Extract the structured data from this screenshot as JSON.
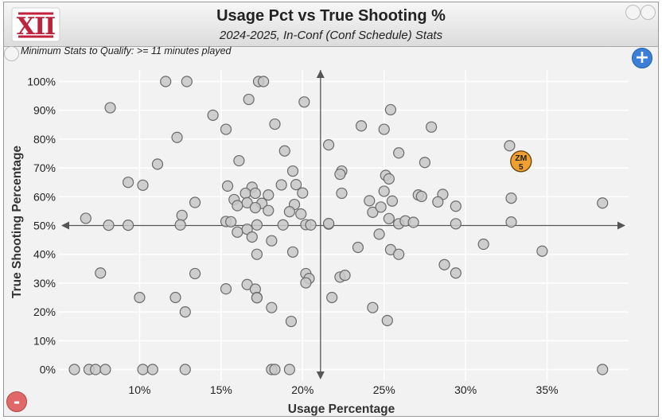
{
  "header": {
    "logo_text": "XII",
    "title": "Usage Pct vs True Shooting %",
    "subtitle": "2024-2025, In-Conf (Conf Schedule) Stats"
  },
  "qualify_text": "Minimum Stats to Qualify: >= 11 minutes played",
  "controls": {
    "zoom_in": "+",
    "zoom_out": "-"
  },
  "colors": {
    "point_fill": "#c8c8c8",
    "point_stroke": "#6a6a6a",
    "highlight_fill": "#f0a030",
    "highlight_stroke": "#6a4a10",
    "axis": "#555555",
    "logo": "#c0223b"
  },
  "chart_data": {
    "type": "scatter",
    "xlabel": "Usage Percentage",
    "ylabel": "True Shooting Percentage",
    "xlim": [
      5,
      40
    ],
    "ylim": [
      -4,
      104
    ],
    "x_ticks": [
      10,
      15,
      20,
      25,
      30,
      35
    ],
    "x_tick_labels": [
      "10%",
      "15%",
      "20%",
      "25%",
      "30%",
      "35%"
    ],
    "y_ticks": [
      0,
      10,
      20,
      30,
      40,
      50,
      60,
      70,
      80,
      90,
      100
    ],
    "y_tick_labels": [
      "0%",
      "10%",
      "20%",
      "30%",
      "40%",
      "50%",
      "60%",
      "70%",
      "80%",
      "90%",
      "100%"
    ],
    "grid": true,
    "crosshair": {
      "x": 21.1,
      "y": 50
    },
    "highlight": {
      "label": "ZM",
      "number": "5",
      "x": 33.4,
      "y": 72.3
    },
    "points": [
      [
        11.6,
        100
      ],
      [
        12.9,
        100
      ],
      [
        17.3,
        100
      ],
      [
        17.6,
        100
      ],
      [
        8.2,
        90.9
      ],
      [
        16.7,
        93.8
      ],
      [
        20.1,
        92.9
      ],
      [
        25.4,
        90.2
      ],
      [
        14.5,
        88.3
      ],
      [
        15.3,
        83.4
      ],
      [
        18.3,
        85.2
      ],
      [
        23.6,
        84.6
      ],
      [
        25.0,
        83.4
      ],
      [
        27.9,
        84.2
      ],
      [
        12.3,
        80.6
      ],
      [
        21.6,
        78.0
      ],
      [
        18.9,
        75.9
      ],
      [
        25.9,
        75.2
      ],
      [
        32.7,
        77.7
      ],
      [
        11.1,
        71.3
      ],
      [
        16.1,
        72.5
      ],
      [
        22.4,
        68.9
      ],
      [
        19.4,
        68.9
      ],
      [
        22.3,
        67.8
      ],
      [
        25.1,
        67.4
      ],
      [
        25.3,
        66.2
      ],
      [
        27.5,
        71.9
      ],
      [
        9.3,
        65.0
      ],
      [
        10.2,
        64.0
      ],
      [
        15.4,
        63.7
      ],
      [
        16.9,
        63.3
      ],
      [
        18.7,
        64.1
      ],
      [
        19.6,
        64.2
      ],
      [
        16.5,
        61.2
      ],
      [
        17.1,
        61.2
      ],
      [
        17.9,
        60.6
      ],
      [
        20.0,
        61.3
      ],
      [
        22.4,
        61.2
      ],
      [
        25.0,
        61.9
      ],
      [
        27.1,
        60.6
      ],
      [
        27.3,
        60.1
      ],
      [
        28.6,
        60.8
      ],
      [
        32.8,
        59.5
      ],
      [
        13.4,
        58.0
      ],
      [
        15.8,
        59.0
      ],
      [
        16.6,
        57.9
      ],
      [
        17.5,
        57.7
      ],
      [
        19.5,
        57.3
      ],
      [
        24.1,
        58.6
      ],
      [
        25.5,
        58.5
      ],
      [
        28.3,
        58.2
      ],
      [
        29.4,
        56.7
      ],
      [
        16.0,
        56.9
      ],
      [
        17.1,
        56.2
      ],
      [
        17.9,
        55.2
      ],
      [
        19.2,
        54.8
      ],
      [
        24.3,
        54.6
      ],
      [
        24.8,
        56.4
      ],
      [
        12.6,
        53.5
      ],
      [
        19.9,
        54.0
      ],
      [
        25.3,
        52.4
      ],
      [
        25.9,
        50.6
      ],
      [
        26.3,
        51.6
      ],
      [
        26.8,
        51.1
      ],
      [
        29.4,
        50.6
      ],
      [
        32.8,
        51.2
      ],
      [
        38.4,
        57.8
      ],
      [
        6.7,
        52.5
      ],
      [
        8.1,
        50.1
      ],
      [
        9.3,
        50.1
      ],
      [
        12.5,
        50.2
      ],
      [
        15.3,
        51.4
      ],
      [
        15.6,
        51.3
      ],
      [
        16.6,
        48.7
      ],
      [
        17.2,
        50.2
      ],
      [
        18.8,
        50.2
      ],
      [
        20.2,
        50.3
      ],
      [
        20.5,
        50.2
      ],
      [
        21.6,
        50.5
      ],
      [
        21.6,
        50.7
      ],
      [
        16.0,
        47.7
      ],
      [
        16.9,
        46.0
      ],
      [
        18.1,
        44.7
      ],
      [
        17.2,
        40.0
      ],
      [
        19.4,
        40.8
      ],
      [
        23.4,
        42.4
      ],
      [
        24.7,
        47.0
      ],
      [
        25.4,
        41.6
      ],
      [
        25.9,
        40.0
      ],
      [
        31.1,
        43.5
      ],
      [
        34.7,
        41.1
      ],
      [
        7.6,
        33.5
      ],
      [
        13.4,
        33.3
      ],
      [
        20.2,
        33.3
      ],
      [
        20.4,
        31.6
      ],
      [
        20.2,
        30.1
      ],
      [
        22.3,
        32.1
      ],
      [
        22.6,
        32.7
      ],
      [
        28.7,
        36.4
      ],
      [
        29.4,
        33.5
      ],
      [
        15.3,
        28.0
      ],
      [
        16.6,
        29.5
      ],
      [
        17.1,
        27.9
      ],
      [
        17.2,
        25.0
      ],
      [
        17.2,
        24.9
      ],
      [
        10.0,
        25.0
      ],
      [
        12.2,
        25.0
      ],
      [
        21.8,
        25.0
      ],
      [
        12.8,
        20.0
      ],
      [
        18.1,
        21.5
      ],
      [
        19.3,
        16.7
      ],
      [
        24.3,
        21.5
      ],
      [
        25.2,
        17.0
      ],
      [
        6.0,
        0
      ],
      [
        6.9,
        0
      ],
      [
        7.3,
        0
      ],
      [
        7.9,
        0
      ],
      [
        10.2,
        0
      ],
      [
        10.8,
        0
      ],
      [
        12.8,
        0
      ],
      [
        18.1,
        0
      ],
      [
        18.3,
        0
      ],
      [
        19.2,
        0
      ],
      [
        38.4,
        0
      ]
    ]
  }
}
